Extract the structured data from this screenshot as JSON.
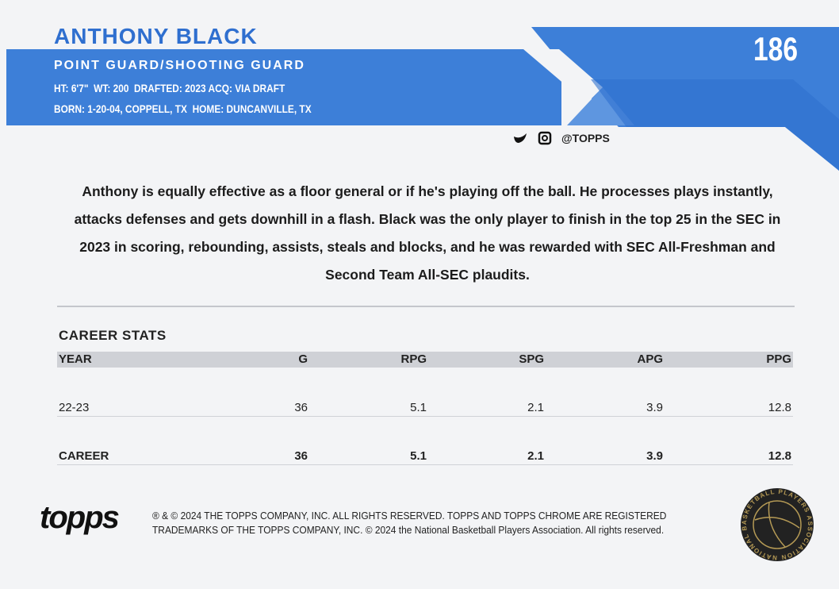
{
  "header": {
    "name": "ANTHONY BLACK",
    "card_number": "186",
    "position": "POINT GUARD/SHOOTING GUARD",
    "info_line_1": "HT: 6'7\"  WT: 200  DRAFTED: 2023 ACQ: VIA DRAFT",
    "info_line_2": "BORN: 1-20-04, COPPELL, TX  HOME: DUNCANVILLE, TX",
    "social": "@TOPPS"
  },
  "bio": "Anthony is equally effective as a floor general or if he's playing off the ball. He processes plays instantly, attacks defenses and gets downhill in a flash. Black was the only player to finish in the top 25 in the SEC in 2023 in scoring, rebounding, assists, steals and blocks, and he was rewarded with SEC All-Freshman and Second Team All-SEC plaudits.",
  "stats": {
    "title": "CAREER STATS",
    "columns": [
      "YEAR",
      "G",
      "RPG",
      "SPG",
      "APG",
      "PPG"
    ],
    "rows": [
      [
        "22-23",
        36,
        5.1,
        2.1,
        3.9,
        12.8
      ],
      [
        "CAREER",
        36,
        5.1,
        2.1,
        3.9,
        12.8
      ]
    ]
  },
  "footer": {
    "logo": "topps",
    "legal_line_1": "® & © 2024 THE TOPPS COMPANY, INC. ALL RIGHTS RESERVED. TOPPS AND TOPPS CHROME ARE REGISTERED",
    "legal_line_2": "TRADEMARKS OF THE TOPPS COMPANY, INC. © 2024 the National Basketball Players Association. All rights reserved.",
    "badge": "NATIONAL BASKETBALL PLAYERS ASSOCIATION"
  }
}
